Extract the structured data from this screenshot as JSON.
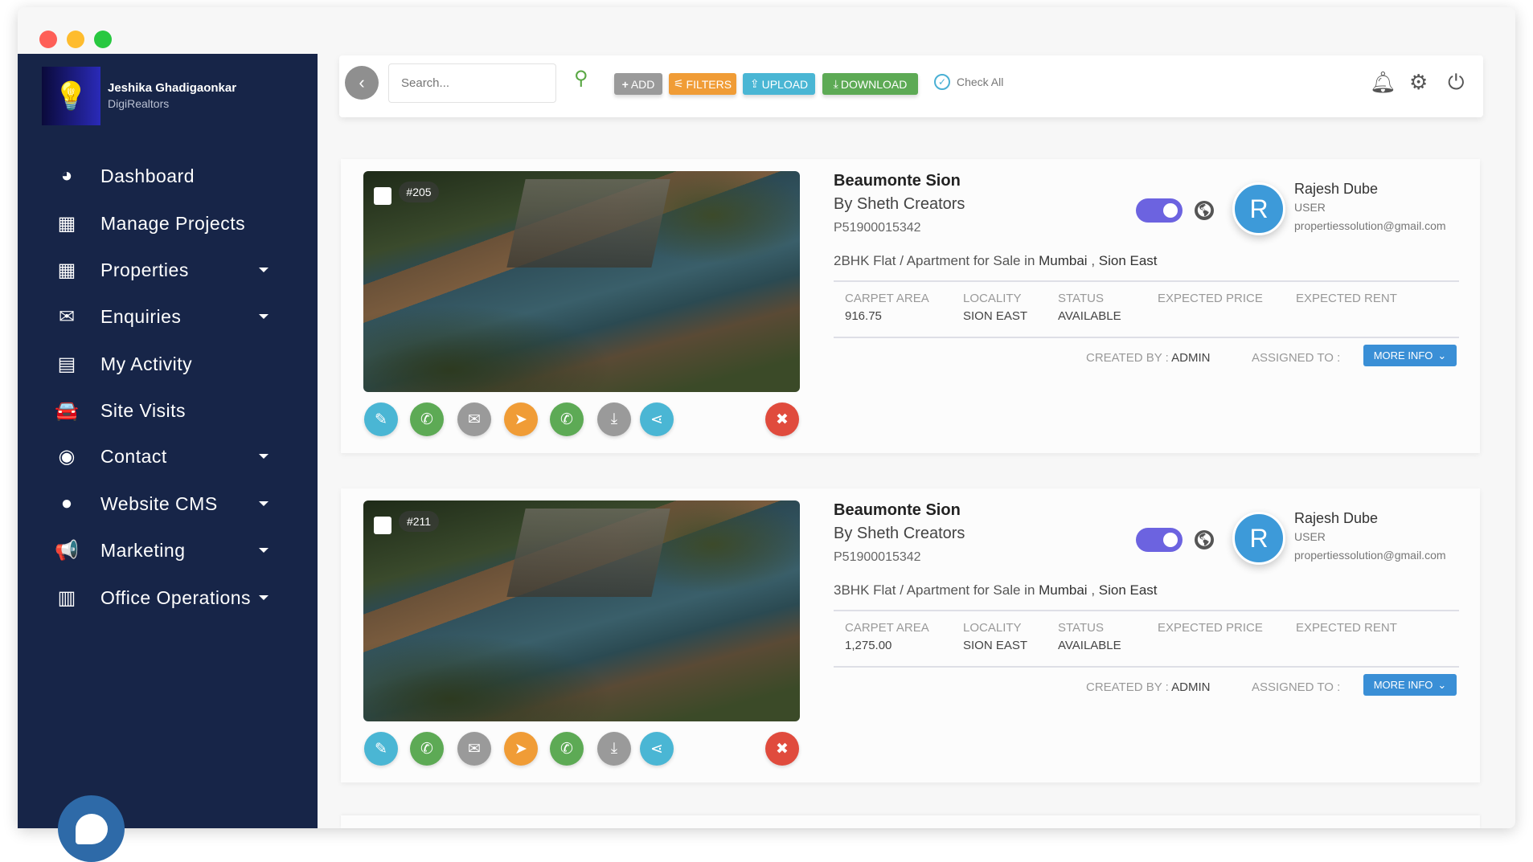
{
  "window": {
    "controls": [
      "#fe5f57",
      "#febc2e",
      "#28c840"
    ]
  },
  "sidebar": {
    "user_name": "Jeshika Ghadigaonkar",
    "org": "DigiRealtors",
    "items": [
      {
        "label": "Dashboard",
        "icon": "dashboard-icon",
        "glyph": "◕",
        "caret": false
      },
      {
        "label": "Manage Projects",
        "icon": "building-icon",
        "glyph": "▦",
        "caret": false
      },
      {
        "label": "Properties",
        "icon": "building-icon",
        "glyph": "▦",
        "caret": true
      },
      {
        "label": "Enquiries",
        "icon": "envelope-icon",
        "glyph": "✉",
        "caret": true
      },
      {
        "label": "My Activity",
        "icon": "calendar-icon",
        "glyph": "▤",
        "caret": false
      },
      {
        "label": "Site Visits",
        "icon": "car-icon",
        "glyph": "🚘",
        "caret": false
      },
      {
        "label": "Contact",
        "icon": "user-circle-icon",
        "glyph": "◉",
        "caret": true
      },
      {
        "label": "Website CMS",
        "icon": "globe-icon",
        "glyph": "●",
        "caret": true
      },
      {
        "label": "Marketing",
        "icon": "megaphone-icon",
        "glyph": "📢",
        "caret": true
      },
      {
        "label": "Office Operations",
        "icon": "fax-icon",
        "glyph": "▥",
        "caret": true
      }
    ]
  },
  "toolbar": {
    "search_placeholder": "Search...",
    "add": "ADD",
    "filters": "FILTERS",
    "upload": "UPLOAD",
    "download": "DOWNLOAD",
    "check_all": "Check All"
  },
  "colors": {
    "sidebar": "#172548",
    "add": "#9a9a9a",
    "filters": "#f09c36",
    "upload": "#4ab6d4",
    "download": "#5daa55",
    "more_info": "#3a8fd6",
    "toggle": "#6c63e0",
    "avatar": "#3d9ad9"
  },
  "columns": [
    "CARPET AREA",
    "LOCALITY",
    "STATUS",
    "EXPECTED PRICE",
    "EXPECTED RENT"
  ],
  "labels": {
    "created_by": "CREATED BY :",
    "assigned_to": "ASSIGNED TO :",
    "more_info": "MORE INFO"
  },
  "listings": [
    {
      "id": "#205",
      "title": "Beaumonte Sion",
      "builder": "By Sheth Creators",
      "code": "P51900015342",
      "desc_prefix": "2BHK Flat / Apartment for Sale in ",
      "city": "Mumbai",
      "desc_sep": " , ",
      "area": "Sion East",
      "values": [
        "916.75",
        "SION EAST",
        "AVAILABLE",
        "",
        ""
      ],
      "created_by": "ADMIN",
      "assigned_to": "",
      "published": true,
      "user": {
        "initial": "R",
        "name": "Rajesh Dube",
        "role": "USER",
        "email": "propertiessolution@gmail.com"
      }
    },
    {
      "id": "#211",
      "title": "Beaumonte Sion",
      "builder": "By Sheth Creators",
      "code": "P51900015342",
      "desc_prefix": "3BHK Flat / Apartment for Sale in ",
      "city": "Mumbai",
      "desc_sep": " , ",
      "area": "Sion East",
      "values": [
        "1,275.00",
        "SION EAST",
        "AVAILABLE",
        "",
        ""
      ],
      "created_by": "ADMIN",
      "assigned_to": "",
      "published": true,
      "user": {
        "initial": "R",
        "name": "Rajesh Dube",
        "role": "USER",
        "email": "propertiessolution@gmail.com"
      }
    }
  ]
}
